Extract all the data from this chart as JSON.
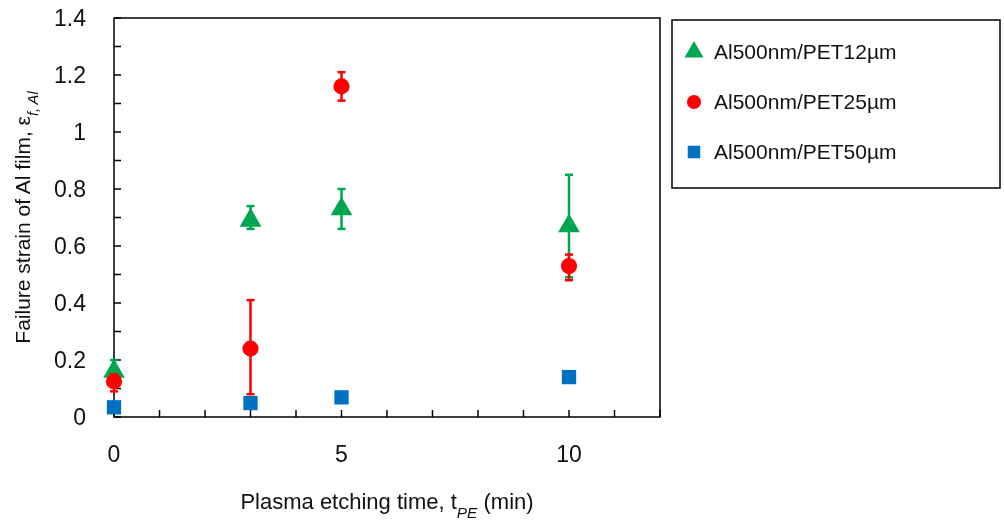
{
  "chart_data": {
    "type": "scatter",
    "xlabel": "Plasma etching time, t$_{PE}$ (min)",
    "ylabel": "Failure strain of Al film, ε$_{f, Al}$",
    "xlim": [
      0,
      12
    ],
    "xticks": [
      0,
      {
        "value": 1,
        "label": null
      },
      {
        "value": 2,
        "label": null
      },
      {
        "value": 3,
        "label": null
      },
      {
        "value": 4,
        "label": null
      },
      5,
      {
        "value": 6,
        "label": null
      },
      {
        "value": 7,
        "label": null
      },
      {
        "value": 8,
        "label": null
      },
      {
        "value": 9,
        "label": null
      },
      10,
      {
        "value": 11,
        "label": null
      },
      {
        "value": 12,
        "label": null
      }
    ],
    "ylim": [
      0,
      1.4
    ],
    "yticks": [
      0,
      {
        "value": 0.1,
        "label": null
      },
      0.2,
      {
        "value": 0.3,
        "label": null
      },
      0.4,
      {
        "value": 0.5,
        "label": null
      },
      0.6,
      {
        "value": 0.7,
        "label": null
      },
      0.8,
      {
        "value": 0.9,
        "label": null
      },
      1,
      {
        "value": 1.1,
        "label": null
      },
      1.2,
      {
        "value": 1.3,
        "label": null
      },
      1.4
    ],
    "grid": false,
    "legend": "right",
    "series": [
      {
        "name": "Al500nm/PET12µm",
        "color": "#00a650",
        "marker": "triangle",
        "x": [
          0,
          3,
          5,
          10
        ],
        "values": [
          0.16,
          0.69,
          0.73,
          0.67
        ],
        "errors": [
          [
            0.16,
            0.2
          ],
          [
            0.66,
            0.74
          ],
          [
            0.66,
            0.8
          ],
          [
            0.49,
            0.85
          ]
        ]
      },
      {
        "name": "Al500nm/PET25µm",
        "color": "#ff0000",
        "marker": "circle",
        "x": [
          0,
          3,
          5,
          10
        ],
        "values": [
          0.125,
          0.24,
          1.16,
          0.53
        ],
        "errors": [
          [
            0.09,
            0.15
          ],
          [
            0.08,
            0.41
          ],
          [
            1.11,
            1.21
          ],
          [
            0.48,
            0.57
          ]
        ]
      },
      {
        "name": "Al500nm/PET50µm",
        "color": "#0070c0",
        "marker": "square",
        "x": [
          0,
          3,
          5,
          10
        ],
        "values": [
          0.034,
          0.049,
          0.069,
          0.14
        ]
      }
    ]
  }
}
